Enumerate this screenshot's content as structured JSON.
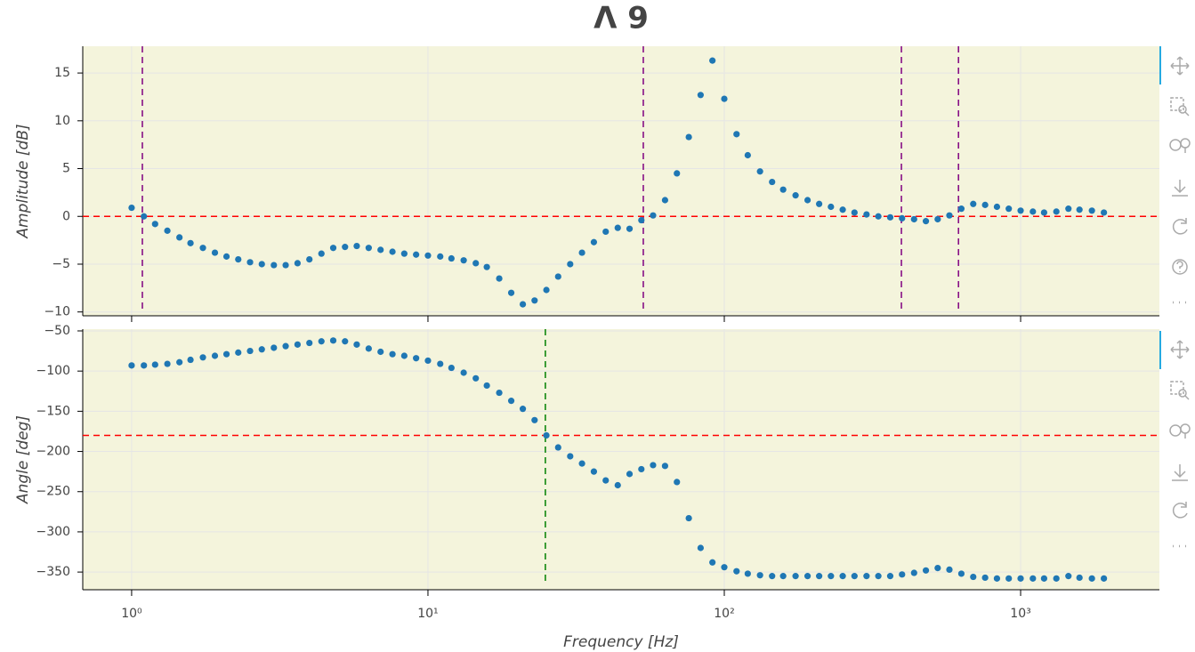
{
  "title": "Λ 9",
  "chart_data": [
    {
      "type": "scatter",
      "ylabel": "Amplitude [dB]",
      "xlog": true,
      "grid": true,
      "xtick_labels": false,
      "xlim": [
        0.684,
        2940
      ],
      "xticks": [
        1,
        10,
        100,
        1000
      ],
      "ylim": [
        -10.4,
        17.8
      ],
      "yticks": [
        {
          "value": -10,
          "label": "−10"
        },
        {
          "value": -5,
          "label": "−5"
        },
        0,
        5,
        10,
        15
      ],
      "hline": 0,
      "hline_color": "#ff0000",
      "vlines": [
        1.087,
        53.3,
        396,
        617
      ],
      "vline_color": "#800080",
      "color": "#1f77b4",
      "x": [
        1,
        1.1,
        1.2,
        1.32,
        1.45,
        1.58,
        1.74,
        1.91,
        2.09,
        2.29,
        2.51,
        2.75,
        3.02,
        3.31,
        3.63,
        3.98,
        4.37,
        4.79,
        5.25,
        5.75,
        6.31,
        6.92,
        7.59,
        8.32,
        9.12,
        10,
        11.0,
        12.0,
        13.2,
        14.5,
        15.8,
        17.4,
        19.1,
        20.9,
        22.9,
        25.1,
        27.5,
        30.2,
        33.1,
        36.3,
        39.8,
        43.7,
        47.9,
        52.5,
        57.5,
        63.1,
        69.2,
        75.9,
        83.2,
        91.2,
        100,
        110,
        120,
        132,
        145,
        158,
        174,
        191,
        209,
        229,
        251,
        275,
        302,
        331,
        363,
        398,
        437,
        479,
        525,
        575,
        631,
        692,
        759,
        832,
        912,
        1000,
        1100,
        1200,
        1320,
        1450,
        1580,
        1740,
        1910
      ],
      "values": [
        0.9,
        0.0,
        -0.8,
        -1.5,
        -2.2,
        -2.8,
        -3.3,
        -3.8,
        -4.2,
        -4.5,
        -4.8,
        -5.0,
        -5.1,
        -5.1,
        -4.9,
        -4.5,
        -3.9,
        -3.3,
        -3.2,
        -3.1,
        -3.3,
        -3.5,
        -3.7,
        -3.9,
        -4.0,
        -4.1,
        -4.2,
        -4.4,
        -4.6,
        -4.9,
        -5.3,
        -6.5,
        -8.0,
        -9.2,
        -8.8,
        -7.7,
        -6.3,
        -5.0,
        -3.8,
        -2.7,
        -1.6,
        -1.2,
        -1.3,
        -0.4,
        0.1,
        1.7,
        4.5,
        8.3,
        12.7,
        16.3,
        12.3,
        8.6,
        6.4,
        4.7,
        3.6,
        2.8,
        2.2,
        1.7,
        1.3,
        1.0,
        0.7,
        0.4,
        0.2,
        0.0,
        -0.1,
        -0.2,
        -0.3,
        -0.5,
        -0.3,
        0.1,
        0.8,
        1.3,
        1.2,
        1.0,
        0.8,
        0.6,
        0.5,
        0.4,
        0.5,
        0.8,
        0.7,
        0.6,
        0.4
      ]
    },
    {
      "type": "scatter",
      "ylabel": "Angle [deg]",
      "xlabel": "Frequency [Hz]",
      "xlog": true,
      "grid": true,
      "xtick_labels": true,
      "xlim": [
        0.684,
        2940
      ],
      "xticks": [
        {
          "value": 1,
          "label": "10⁰"
        },
        {
          "value": 10,
          "label": "10¹"
        },
        {
          "value": 100,
          "label": "10²"
        },
        {
          "value": 1000,
          "label": "10³"
        }
      ],
      "ylim": [
        -372,
        -47.8
      ],
      "yticks": [
        {
          "value": -50,
          "label": "−50"
        },
        {
          "value": -100,
          "label": "−100"
        },
        {
          "value": -150,
          "label": "−150"
        },
        {
          "value": -200,
          "label": "−200"
        },
        {
          "value": -250,
          "label": "−250"
        },
        {
          "value": -300,
          "label": "−300"
        },
        {
          "value": -350,
          "label": "−350"
        }
      ],
      "hline": -180,
      "hline_color": "#ff0000",
      "vlines": [
        24.9
      ],
      "vline_color": "#008000",
      "color": "#1f77b4",
      "x": [
        1,
        1.1,
        1.2,
        1.32,
        1.45,
        1.58,
        1.74,
        1.91,
        2.09,
        2.29,
        2.51,
        2.75,
        3.02,
        3.31,
        3.63,
        3.98,
        4.37,
        4.79,
        5.25,
        5.75,
        6.31,
        6.92,
        7.59,
        8.32,
        9.12,
        10,
        11.0,
        12.0,
        13.2,
        14.5,
        15.8,
        17.4,
        19.1,
        20.9,
        22.9,
        25.1,
        27.5,
        30.2,
        33.1,
        36.3,
        39.8,
        43.7,
        47.9,
        52.5,
        57.5,
        63.1,
        69.2,
        75.9,
        83.2,
        91.2,
        100,
        110,
        120,
        132,
        145,
        158,
        174,
        191,
        209,
        229,
        251,
        275,
        302,
        331,
        363,
        398,
        437,
        479,
        525,
        575,
        631,
        692,
        759,
        832,
        912,
        1000,
        1100,
        1200,
        1320,
        1450,
        1580,
        1740,
        1910
      ],
      "values": [
        -93,
        -93,
        -92,
        -91,
        -89,
        -86,
        -83,
        -81,
        -79,
        -77,
        -75,
        -73,
        -71,
        -69,
        -67,
        -65,
        -63,
        -62,
        -63,
        -67,
        -72,
        -76,
        -79,
        -81,
        -84,
        -87,
        -91,
        -96,
        -102,
        -109,
        -118,
        -127,
        -137,
        -147,
        -161,
        -180,
        -195,
        -206,
        -215,
        -225,
        -236,
        -242,
        -228,
        -222,
        -217,
        -218,
        -238,
        -283,
        -320,
        -338,
        -344,
        -349,
        -352,
        -354,
        -355,
        -355,
        -355,
        -355,
        -355,
        -355,
        -355,
        -355,
        -355,
        -355,
        -355,
        -353,
        -351,
        -348,
        -345,
        -347,
        -352,
        -356,
        -357,
        -358,
        -358,
        -358,
        -358,
        -358,
        -358,
        -355,
        -357,
        -358,
        -358
      ]
    }
  ]
}
